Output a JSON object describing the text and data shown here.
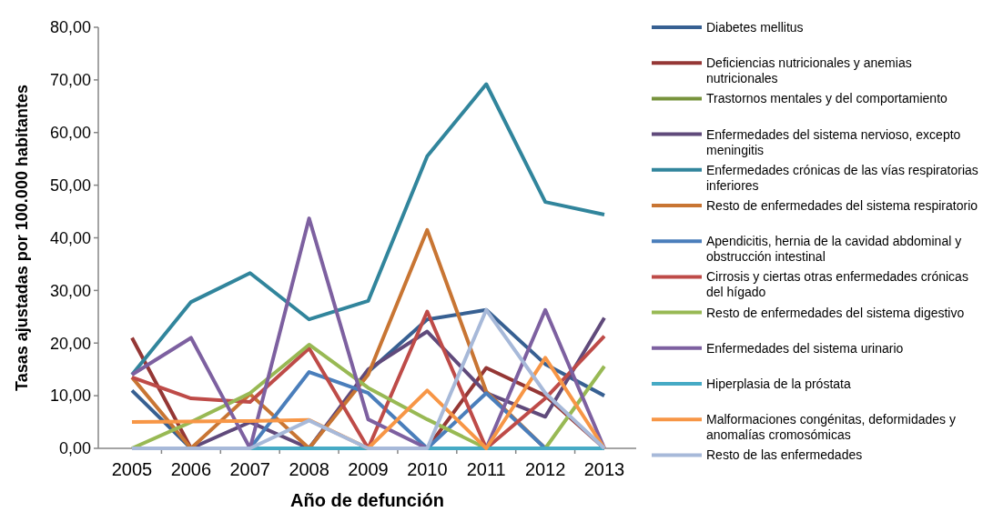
{
  "chart_data": {
    "type": "line",
    "xlabel": "Año de defunción",
    "ylabel": "Tasas ajustadas por 100.000 habitantes",
    "categories": [
      "2005",
      "2006",
      "2007",
      "2008",
      "2009",
      "2010",
      "2011",
      "2012",
      "2013"
    ],
    "ylim": [
      0,
      80
    ],
    "yticks": [
      {
        "value": 0,
        "label": "0,00"
      },
      {
        "value": 10,
        "label": "10,00"
      },
      {
        "value": 20,
        "label": "20,00"
      },
      {
        "value": 30,
        "label": "30,00"
      },
      {
        "value": 40,
        "label": "40,00"
      },
      {
        "value": 50,
        "label": "50,00"
      },
      {
        "value": 60,
        "label": "60,00"
      },
      {
        "value": 70,
        "label": "70,00"
      },
      {
        "value": 80,
        "label": "80,00"
      }
    ],
    "grid": false,
    "legend": "right",
    "marker": "none",
    "line_style": "solid",
    "series": [
      {
        "name": "Diabetes mellitus",
        "color": "#376092",
        "values": [
          11,
          0,
          0,
          0,
          14.5,
          24.5,
          26.3,
          16,
          10
        ]
      },
      {
        "name": "Deficiencias nutricionales y anemias nutricionales",
        "color": "#953735",
        "values": [
          21,
          0,
          0,
          0,
          0,
          0,
          15.3,
          10,
          0
        ]
      },
      {
        "name": "Trastornos mentales y del comportamiento",
        "color": "#77933c",
        "values": [
          null,
          null,
          null,
          null,
          null,
          null,
          null,
          null,
          null
        ]
      },
      {
        "name": "Enfermedades del sistema nervioso, excepto meningitis",
        "color": "#604a7b",
        "values": [
          0,
          0,
          5,
          0,
          15,
          22.2,
          10.5,
          6,
          24.8
        ]
      },
      {
        "name": "Enfermedades crónicas de las vías respiratorias inferiores",
        "color": "#31859c",
        "values": [
          14,
          27.8,
          33.3,
          24.5,
          28,
          55.5,
          69.2,
          46.8,
          44.4
        ]
      },
      {
        "name": "Resto de enfermedades del sistema respiratorio",
        "color": "#c87533",
        "values": [
          13.5,
          0,
          10.3,
          0,
          14,
          41.5,
          10.8,
          0,
          0
        ]
      },
      {
        "name": "Apendicitis, hernia de la cavidad abdominal y obstrucción intestinal",
        "color": "#4a7ebb",
        "values": [
          0,
          0,
          0,
          14.5,
          10.5,
          0,
          10.5,
          0,
          0
        ]
      },
      {
        "name": "Cirrosis y ciertas otras enfermedades crónicas del hígado",
        "color": "#be4b48",
        "values": [
          13.5,
          9.5,
          8.8,
          19,
          0,
          26,
          0,
          9.5,
          21.3
        ]
      },
      {
        "name": "Resto de enfermedades del sistema digestivo",
        "color": "#98b954",
        "values": [
          0,
          5,
          10.5,
          19.7,
          11.5,
          5.5,
          0,
          0,
          15.6
        ]
      },
      {
        "name": "Enfermedades del sistema urinario",
        "color": "#7d60a0",
        "values": [
          14,
          21,
          0,
          43.7,
          5.5,
          0,
          0,
          26.3,
          0
        ]
      },
      {
        "name": "Hiperplasia de la próstata",
        "color": "#46aac5",
        "values": [
          0,
          0,
          0,
          0,
          0,
          0,
          0,
          0,
          0
        ]
      },
      {
        "name": "Malformaciones congénitas, deformidades y anomalías cromosómicas",
        "color": "#f79646",
        "values": [
          5,
          5.1,
          5.2,
          5.4,
          0,
          11,
          0,
          17.2,
          0
        ]
      },
      {
        "name": "Resto de las enfermedades",
        "color": "#a7b9d9",
        "values": [
          0,
          0,
          0,
          5.3,
          0,
          0,
          26.3,
          10.5,
          0
        ]
      }
    ]
  }
}
